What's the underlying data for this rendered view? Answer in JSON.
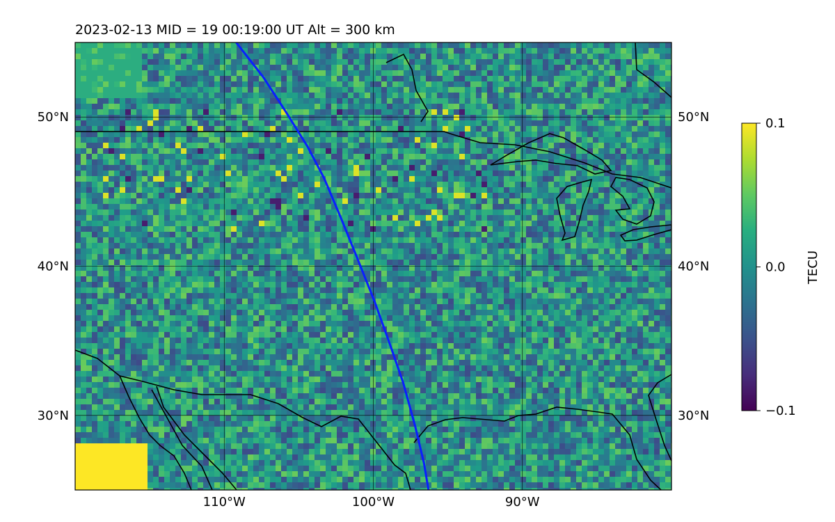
{
  "title": "2023-02-13  MID =  19    00:19:00  UT  Alt = 300 km",
  "map": {
    "lon_range": [
      -120,
      -80
    ],
    "lat_range": [
      25,
      55
    ],
    "lat_ticks": [
      30,
      40,
      50
    ],
    "lat_tick_labels": [
      "30°N",
      "40°N",
      "50°N"
    ],
    "lon_ticks": [
      -110,
      -100,
      -90
    ],
    "lon_tick_labels": [
      "110°W",
      "100°W",
      "90°W"
    ],
    "grid": true,
    "field": "TEC perturbation (heatmap, viridis)",
    "track_color": "#0a1fff",
    "track": [
      {
        "lon": -109.2,
        "lat": 55.0
      },
      {
        "lon": -107.4,
        "lat": 52.7
      },
      {
        "lon": -105.9,
        "lat": 50.4
      },
      {
        "lon": -104.4,
        "lat": 48.0
      },
      {
        "lon": -103.3,
        "lat": 45.9
      },
      {
        "lon": -102.2,
        "lat": 43.3
      },
      {
        "lon": -101.1,
        "lat": 40.6
      },
      {
        "lon": -99.9,
        "lat": 37.6
      },
      {
        "lon": -98.9,
        "lat": 34.8
      },
      {
        "lon": -98.0,
        "lat": 32.2
      },
      {
        "lon": -97.2,
        "lat": 29.3
      },
      {
        "lon": -96.6,
        "lat": 26.8
      },
      {
        "lon": -96.3,
        "lat": 25.0
      }
    ]
  },
  "colorbar": {
    "label": "TECU",
    "min": -0.1,
    "max": 0.1,
    "ticks": [
      -0.1,
      0.0,
      0.1
    ],
    "tick_labels": [
      "−0.1",
      "0.0",
      "0.1"
    ],
    "colormap": "viridis"
  }
}
